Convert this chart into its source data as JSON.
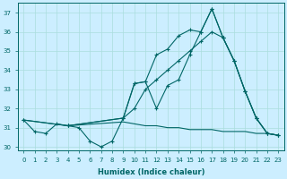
{
  "xlabel": "Humidex (Indice chaleur)",
  "background_color": "#cceeff",
  "line_color": "#006666",
  "grid_color": "#aadddd",
  "xlim": [
    -0.5,
    23.5
  ],
  "ylim": [
    29.8,
    37.5
  ],
  "yticks": [
    30,
    31,
    32,
    33,
    34,
    35,
    36,
    37
  ],
  "xticks": [
    0,
    1,
    2,
    3,
    4,
    5,
    6,
    7,
    8,
    9,
    10,
    11,
    12,
    13,
    14,
    15,
    16,
    17,
    18,
    19,
    20,
    21,
    22,
    23
  ],
  "series": [
    {
      "x": [
        0,
        1,
        2,
        3,
        4,
        5,
        6,
        7,
        8,
        9,
        10,
        11,
        12,
        13,
        14,
        15,
        16,
        17,
        18,
        19,
        20,
        21,
        22,
        23
      ],
      "y": [
        31.4,
        30.8,
        30.7,
        31.2,
        31.1,
        31.0,
        30.3,
        30.0,
        30.3,
        31.5,
        33.3,
        33.4,
        32.0,
        33.2,
        33.5,
        34.8,
        36.0,
        37.2,
        35.7,
        34.5,
        32.9,
        31.5,
        30.7,
        30.6
      ],
      "marker": "+",
      "linestyle": "-"
    },
    {
      "x": [
        4,
        9,
        10,
        11,
        12,
        13,
        14,
        15,
        16,
        17,
        18,
        19,
        20,
        21,
        22,
        23
      ],
      "y": [
        31.1,
        31.5,
        33.3,
        33.4,
        34.8,
        35.1,
        35.8,
        36.1,
        36.0,
        37.2,
        35.7,
        34.5,
        32.9,
        31.5,
        30.7,
        30.6
      ],
      "marker": "+",
      "linestyle": "-"
    },
    {
      "x": [
        0,
        4,
        9,
        10,
        11,
        12,
        13,
        14,
        15,
        16,
        17,
        18,
        19,
        20,
        21,
        22,
        23
      ],
      "y": [
        31.4,
        31.1,
        31.5,
        32.0,
        33.0,
        33.5,
        34.0,
        34.5,
        35.0,
        35.5,
        36.0,
        35.7,
        34.5,
        32.9,
        31.5,
        30.7,
        30.6
      ],
      "marker": "+",
      "linestyle": "-"
    },
    {
      "x": [
        0,
        4,
        9,
        10,
        11,
        12,
        13,
        14,
        15,
        16,
        17,
        18,
        19,
        20,
        21,
        22,
        23
      ],
      "y": [
        31.4,
        31.1,
        31.3,
        31.2,
        31.1,
        31.1,
        31.0,
        31.0,
        30.9,
        30.9,
        30.9,
        30.8,
        30.8,
        30.8,
        30.7,
        30.7,
        30.6
      ],
      "marker": null,
      "linestyle": "-"
    }
  ]
}
